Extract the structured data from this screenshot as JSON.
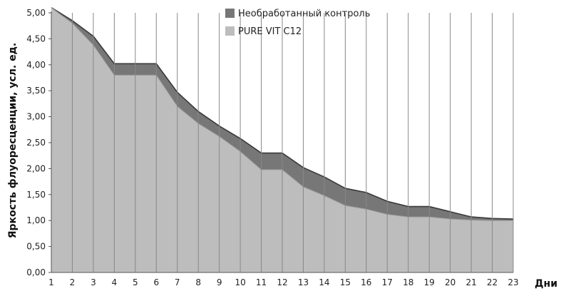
{
  "chart_data": {
    "type": "area",
    "xlabel": "Дни",
    "ylabel": "Яркость флуоресценции, усл. ед.",
    "x": [
      1,
      2,
      3,
      4,
      5,
      6,
      7,
      8,
      9,
      10,
      11,
      12,
      13,
      14,
      15,
      16,
      17,
      18,
      19,
      20,
      21,
      22,
      23
    ],
    "x_tick_labels": [
      "1",
      "2",
      "3",
      "4",
      "5",
      "6",
      "7",
      "8",
      "9",
      "10",
      "11",
      "12",
      "13",
      "14",
      "15",
      "16",
      "17",
      "18",
      "19",
      "20",
      "21",
      "22",
      "23"
    ],
    "y_tick_labels": [
      "0,00",
      "0,50",
      "1,00",
      "1,50",
      "2,00",
      "2,50",
      "3,00",
      "3,50",
      "4,00",
      "4,50",
      "5,00"
    ],
    "ylim": [
      0,
      5.0
    ],
    "x_gridlines": true,
    "legend_position": "top",
    "series": [
      {
        "name": "Необработанный контроль",
        "color": "#777777",
        "values": [
          5.1,
          4.85,
          4.55,
          4.02,
          4.02,
          4.02,
          3.47,
          3.1,
          2.82,
          2.58,
          2.3,
          2.3,
          2.02,
          1.84,
          1.62,
          1.54,
          1.37,
          1.27,
          1.27,
          1.17,
          1.07,
          1.04,
          1.03
        ]
      },
      {
        "name": "PURE VIT C12",
        "color": "#bdbdbd",
        "values": [
          5.1,
          4.8,
          4.38,
          3.8,
          3.8,
          3.8,
          3.2,
          2.87,
          2.62,
          2.33,
          1.98,
          1.98,
          1.65,
          1.48,
          1.29,
          1.22,
          1.12,
          1.07,
          1.07,
          1.03,
          1.01,
          1.0,
          1.0
        ]
      }
    ]
  }
}
